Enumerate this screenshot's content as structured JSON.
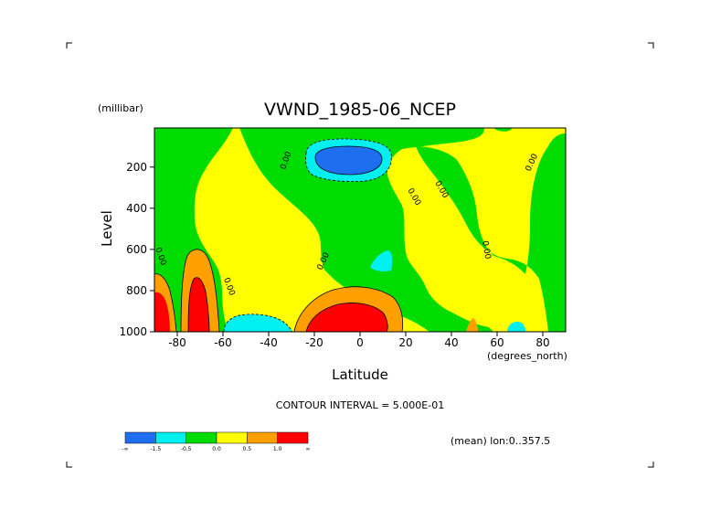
{
  "chart_data": {
    "type": "heatmap",
    "title": "VWND_1985-06_NCEP",
    "xlabel": "Latitude",
    "ylabel": "Level",
    "x_unit": "(degrees_north)",
    "y_unit": "(millibar)",
    "xlim": [
      -90,
      90
    ],
    "ylim": [
      1000,
      10
    ],
    "x_ticks": [
      -80,
      -60,
      -40,
      -20,
      0,
      20,
      40,
      60,
      80
    ],
    "x_tick_labels": [
      "-80",
      "-60",
      "-40",
      "-20",
      "0",
      "20",
      "40",
      "60",
      "80"
    ],
    "y_ticks": [
      200,
      400,
      600,
      800,
      1000
    ],
    "y_tick_labels": [
      "200",
      "400",
      "600",
      "800",
      "1000"
    ],
    "contour_interval_text": "CONTOUR INTERVAL = 5.000E-01",
    "footer_text": "(mean) lon:0..357.5",
    "contour_labels": [
      "0.00",
      "0.00",
      "0.00",
      "0.00",
      "0.00",
      "0.00",
      "0.00",
      "0.00"
    ],
    "legend": {
      "levels": [
        "-∞",
        "-1.5",
        "-0.5",
        "0.0",
        "0.5",
        "1.0",
        "∞"
      ],
      "level_labels": [
        "-∞",
        "-1.5",
        "-0.5",
        "0.0",
        "0.5",
        "1.0",
        "∞"
      ],
      "colors": [
        "#1e6ef0",
        "#00f0f0",
        "#00dc00",
        "#ffff00",
        "#ffa000",
        "#ff0000"
      ]
    },
    "regions": [
      {
        "name": "blue core",
        "value_range": "< -1.5",
        "lat": [
          -18,
          8
        ],
        "level": [
          150,
          230
        ]
      },
      {
        "name": "red low levels southern",
        "value_range": "> 1.0",
        "lat": [
          -90,
          -70
        ],
        "level": [
          800,
          1000
        ]
      },
      {
        "name": "red low levels equatorial",
        "value_range": "> 1.0",
        "lat": [
          -20,
          10
        ],
        "level": [
          880,
          1000
        ]
      },
      {
        "name": "cyan near -50",
        "value_range": "-1.5 to -0.5",
        "lat": [
          -60,
          -40
        ],
        "level": [
          920,
          1000
        ]
      }
    ]
  },
  "colors": {
    "blue": "#1e6ef0",
    "cyan": "#00f0f0",
    "green": "#00dc00",
    "yellow": "#ffff00",
    "orange": "#ffa000",
    "red": "#ff0000"
  }
}
